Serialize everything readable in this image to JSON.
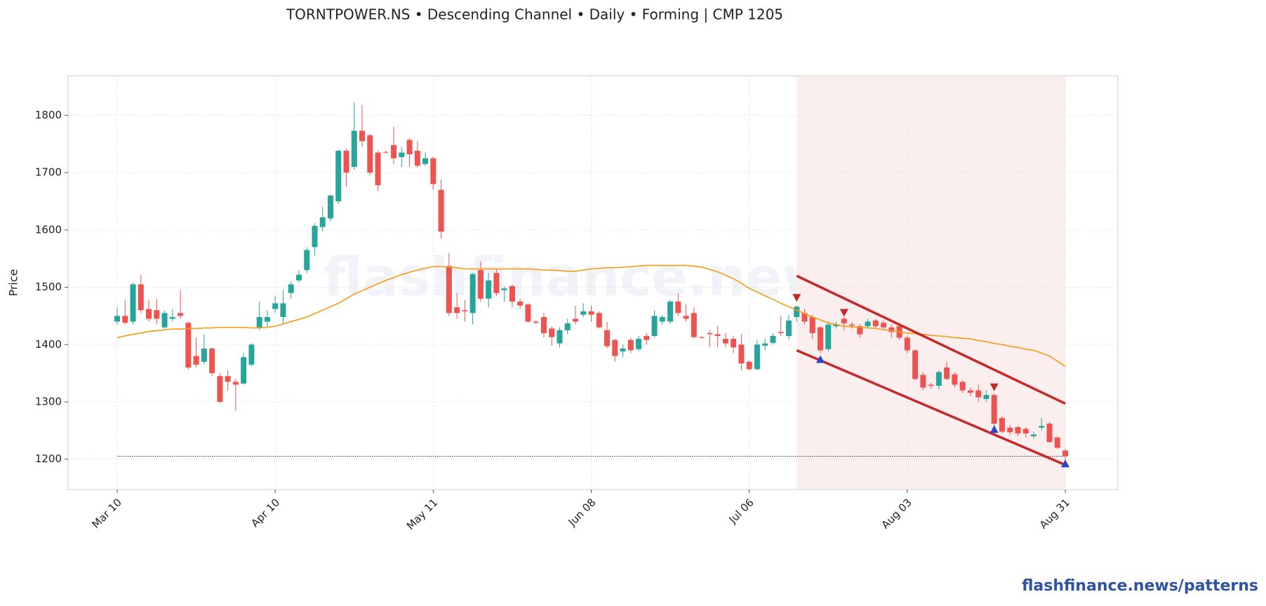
{
  "chart_data": {
    "type": "candlestick",
    "title": "TORNTPOWER.NS  •  Descending Channel  •  Daily  •  Forming  |  CMP 1205",
    "ylabel": "Price",
    "watermark": "flashfinance.news",
    "footer": "flashfinance.news/patterns",
    "categories": [
      "Mar 10",
      null,
      null,
      null,
      null,
      null,
      null,
      null,
      null,
      null,
      null,
      null,
      null,
      null,
      null,
      null,
      null,
      null,
      null,
      null,
      "Apr 10",
      null,
      null,
      null,
      null,
      null,
      null,
      null,
      null,
      null,
      null,
      null,
      null,
      null,
      null,
      null,
      null,
      null,
      null,
      null,
      "May 11",
      null,
      null,
      null,
      null,
      null,
      null,
      null,
      null,
      null,
      null,
      null,
      null,
      null,
      null,
      null,
      null,
      null,
      null,
      null,
      "Jun 08",
      null,
      null,
      null,
      null,
      null,
      null,
      null,
      null,
      null,
      null,
      null,
      null,
      null,
      null,
      null,
      null,
      null,
      null,
      null,
      "Jul 06",
      null,
      null,
      null,
      null,
      null,
      null,
      null,
      null,
      null,
      null,
      null,
      null,
      null,
      null,
      null,
      null,
      null,
      null,
      null,
      "Aug 03",
      null,
      null,
      null,
      null,
      null,
      null,
      null,
      null,
      null,
      null,
      null,
      null,
      null,
      null,
      null,
      null,
      null,
      null,
      null,
      "Aug 31"
    ],
    "open": [
      1440,
      1450,
      1440,
      1505,
      1462,
      1460,
      1430,
      1445,
      1455,
      1438,
      1380,
      1370,
      1393,
      1345,
      1345,
      1335,
      1332,
      1365,
      1430,
      1440,
      1462,
      1448,
      1490,
      1512,
      1530,
      1570,
      1605,
      1620,
      1650,
      1738,
      1710,
      1773,
      1765,
      1735,
      1736,
      1748,
      1727,
      1757,
      1738,
      1715,
      1725,
      1670,
      1537,
      1465,
      1460,
      1455,
      1530,
      1480,
      1525,
      1495,
      1502,
      1475,
      1470,
      1440,
      1448,
      1428,
      1402,
      1425,
      1445,
      1452,
      1458,
      1455,
      1425,
      1408,
      1388,
      1408,
      1392,
      1415,
      1415,
      1440,
      1440,
      1475,
      1450,
      1455,
      1413,
      1420,
      1418,
      1410,
      1410,
      1400,
      1370,
      1357,
      1398,
      1403,
      1422,
      1415,
      1448,
      1455,
      1448,
      1430,
      1392,
      1432,
      1445,
      1435,
      1432,
      1432,
      1442,
      1438,
      1430,
      1432,
      1412,
      1390,
      1347,
      1330,
      1328,
      1360,
      1348,
      1335,
      1320,
      1320,
      1305,
      1312,
      1272,
      1255,
      1256,
      1253,
      1240,
      1255,
      1262,
      1238,
      1215
    ],
    "high": [
      1465,
      1478,
      1508,
      1522,
      1478,
      1480,
      1460,
      1462,
      1495,
      1440,
      1412,
      1418,
      1395,
      1350,
      1355,
      1340,
      1385,
      1402,
      1475,
      1460,
      1485,
      1495,
      1510,
      1530,
      1570,
      1612,
      1640,
      1662,
      1740,
      1742,
      1823,
      1818,
      1768,
      1738,
      1738,
      1780,
      1745,
      1760,
      1755,
      1735,
      1728,
      1688,
      1560,
      1490,
      1478,
      1525,
      1545,
      1525,
      1532,
      1502,
      1505,
      1480,
      1472,
      1442,
      1455,
      1432,
      1430,
      1445,
      1468,
      1472,
      1468,
      1458,
      1440,
      1410,
      1400,
      1412,
      1415,
      1420,
      1460,
      1452,
      1478,
      1490,
      1470,
      1465,
      1415,
      1425,
      1432,
      1420,
      1415,
      1418,
      1372,
      1408,
      1410,
      1420,
      1450,
      1452,
      1468,
      1462,
      1452,
      1432,
      1440,
      1440,
      1448,
      1440,
      1436,
      1445,
      1445,
      1442,
      1435,
      1435,
      1415,
      1392,
      1352,
      1333,
      1355,
      1370,
      1352,
      1338,
      1325,
      1330,
      1320,
      1315,
      1275,
      1260,
      1258,
      1256,
      1248,
      1272,
      1265,
      1240,
      1218
    ],
    "low": [
      1435,
      1435,
      1435,
      1455,
      1440,
      1435,
      1428,
      1440,
      1445,
      1356,
      1360,
      1365,
      1345,
      1298,
      1320,
      1285,
      1330,
      1362,
      1425,
      1430,
      1455,
      1435,
      1480,
      1508,
      1525,
      1555,
      1598,
      1615,
      1645,
      1675,
      1705,
      1745,
      1695,
      1668,
      1733,
      1715,
      1710,
      1710,
      1708,
      1712,
      1670,
      1585,
      1450,
      1445,
      1440,
      1435,
      1475,
      1465,
      1485,
      1475,
      1465,
      1462,
      1438,
      1436,
      1412,
      1398,
      1395,
      1418,
      1435,
      1448,
      1440,
      1428,
      1393,
      1370,
      1378,
      1385,
      1388,
      1400,
      1412,
      1435,
      1436,
      1450,
      1440,
      1410,
      1410,
      1395,
      1395,
      1395,
      1385,
      1355,
      1355,
      1355,
      1390,
      1400,
      1415,
      1408,
      1440,
      1435,
      1410,
      1385,
      1388,
      1428,
      1425,
      1428,
      1412,
      1428,
      1428,
      1425,
      1412,
      1408,
      1385,
      1338,
      1320,
      1323,
      1322,
      1338,
      1325,
      1315,
      1310,
      1300,
      1300,
      1255,
      1245,
      1242,
      1240,
      1238,
      1235,
      1250,
      1228,
      1218,
      1192
    ],
    "close": [
      1450,
      1438,
      1505,
      1460,
      1445,
      1445,
      1455,
      1448,
      1450,
      1360,
      1365,
      1393,
      1350,
      1300,
      1335,
      1330,
      1378,
      1400,
      1448,
      1448,
      1472,
      1472,
      1505,
      1522,
      1565,
      1607,
      1622,
      1660,
      1738,
      1700,
      1773,
      1755,
      1700,
      1678,
      1735,
      1725,
      1735,
      1732,
      1712,
      1725,
      1680,
      1597,
      1455,
      1455,
      1458,
      1523,
      1480,
      1512,
      1490,
      1498,
      1475,
      1468,
      1440,
      1438,
      1420,
      1413,
      1425,
      1437,
      1440,
      1458,
      1452,
      1430,
      1397,
      1380,
      1393,
      1390,
      1410,
      1408,
      1450,
      1448,
      1475,
      1455,
      1445,
      1413,
      1412,
      1418,
      1415,
      1402,
      1395,
      1367,
      1357,
      1400,
      1402,
      1415,
      1420,
      1442,
      1466,
      1440,
      1420,
      1390,
      1435,
      1435,
      1437,
      1433,
      1418,
      1440,
      1432,
      1430,
      1422,
      1412,
      1390,
      1340,
      1325,
      1328,
      1352,
      1340,
      1330,
      1320,
      1316,
      1308,
      1312,
      1262,
      1248,
      1247,
      1245,
      1245,
      1243,
      1258,
      1230,
      1220,
      1205
    ],
    "up_color": "#26a69a",
    "down_color": "#ef5350",
    "ma": {
      "color": "#f39c12",
      "values": [
        1412,
        1415,
        1418,
        1420,
        1423,
        1424,
        1426,
        1427,
        1427,
        1428,
        1428,
        1429,
        1429,
        1430,
        1430,
        1430,
        1430,
        1429,
        1429,
        1430,
        1432,
        1436,
        1440,
        1444,
        1448,
        1454,
        1460,
        1466,
        1472,
        1480,
        1488,
        1494,
        1500,
        1506,
        1512,
        1517,
        1522,
        1526,
        1530,
        1533,
        1536,
        1536,
        1535,
        1534,
        1532,
        1532,
        1532,
        1532,
        1532,
        1532,
        1532,
        1532,
        1532,
        1531,
        1530,
        1530,
        1529,
        1528,
        1528,
        1530,
        1532,
        1533,
        1534,
        1534,
        1535,
        1536,
        1537,
        1538,
        1538,
        1538,
        1538,
        1538,
        1538,
        1537,
        1535,
        1531,
        1527,
        1521,
        1515,
        1507,
        1498,
        1492,
        1485,
        1479,
        1472,
        1466,
        1460,
        1454,
        1448,
        1443,
        1438,
        1435,
        1432,
        1431,
        1430,
        1429,
        1428,
        1426,
        1424,
        1422,
        1420,
        1419,
        1418,
        1416,
        1415,
        1414,
        1412,
        1411,
        1410,
        1407,
        1405,
        1402,
        1400,
        1397,
        1395,
        1392,
        1390,
        1385,
        1380,
        1371,
        1362
      ]
    },
    "channel": {
      "color": "#c62828",
      "upper": {
        "x": [
          86,
          120
        ],
        "values": [
          1520,
          1297
        ]
      },
      "lower": {
        "x": [
          86,
          120
        ],
        "values": [
          1390,
          1190
        ]
      }
    },
    "zone": {
      "x": [
        86,
        120
      ],
      "color": "#fbeeee"
    },
    "pivot_highs": {
      "color": "#c62828",
      "x": [
        86,
        92,
        111
      ],
      "values": [
        1482,
        1456,
        1326
      ]
    },
    "pivot_lows": {
      "color": "#2a44c8",
      "x": [
        89,
        111,
        120
      ],
      "values": [
        1374,
        1252,
        1192
      ]
    },
    "cmp_line": 1205,
    "ylim": [
      1147,
      1869
    ],
    "yticks": [
      1200,
      1300,
      1400,
      1500,
      1600,
      1700,
      1800
    ],
    "grid": true
  }
}
